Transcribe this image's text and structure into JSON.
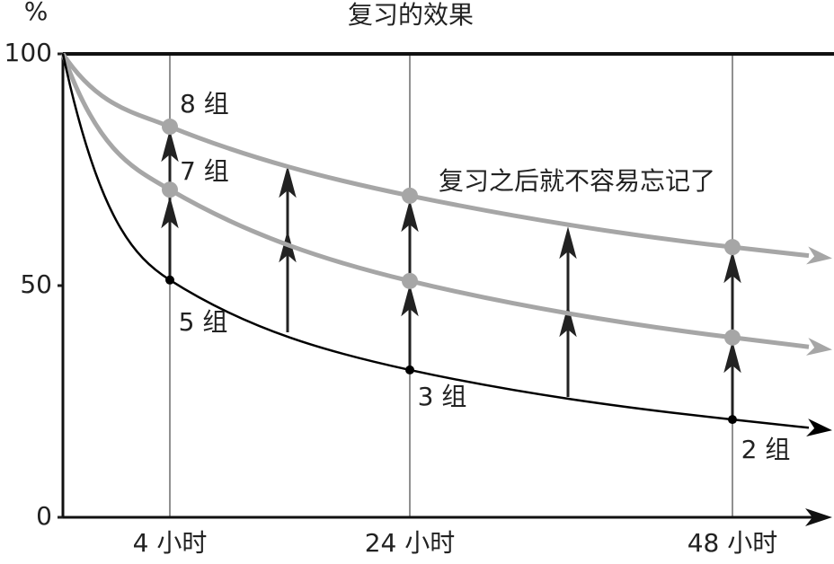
{
  "chart_data": {
    "type": "line",
    "title": "复习的效果",
    "y_label": "%",
    "categories": [
      null,
      "4 小时",
      "24 小时",
      "48 小时"
    ],
    "series": [
      {
        "color": "#a6a6a6",
        "values": [
          100,
          84.3,
          69.4,
          58.3
        ]
      },
      {
        "color": "#a6a6a6",
        "values": [
          100,
          70.7,
          51,
          38.8
        ]
      },
      {
        "color": "#000000",
        "values": [
          100,
          51.2,
          31.8,
          21.1
        ]
      }
    ],
    "ylim": [
      0,
      100
    ],
    "yticks": [
      0,
      50,
      100
    ],
    "annotations": [
      "8 组",
      "7 组",
      "5 组",
      "3 组",
      "2 组",
      "复习之后就不容易忘记了"
    ]
  }
}
